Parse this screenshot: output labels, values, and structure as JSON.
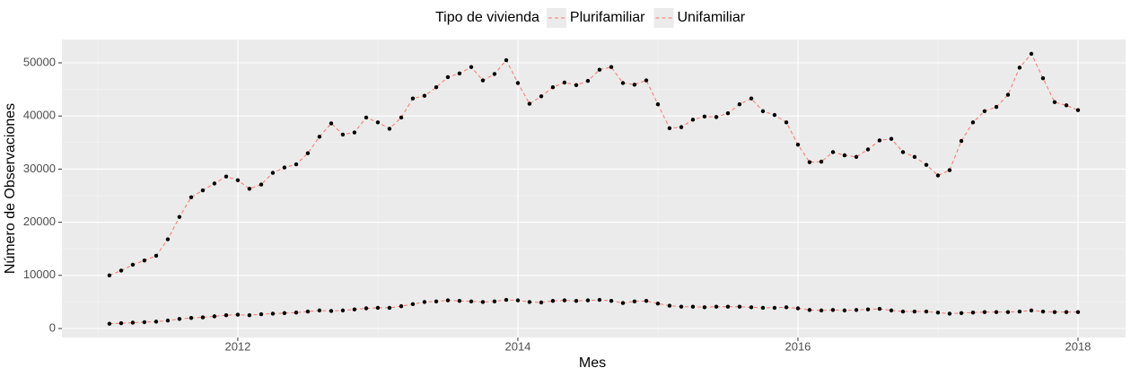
{
  "chart_data": {
    "type": "line",
    "x_label": "Mes",
    "y_label": "Número de Observaciones",
    "legend_title": "Tipo de vivienda",
    "legend_position": "top",
    "x": [
      2011.083,
      2011.167,
      2011.25,
      2011.333,
      2011.417,
      2011.5,
      2011.583,
      2011.667,
      2011.75,
      2011.833,
      2011.917,
      2012,
      2012.083,
      2012.167,
      2012.25,
      2012.333,
      2012.417,
      2012.5,
      2012.583,
      2012.667,
      2012.75,
      2012.833,
      2012.917,
      2013,
      2013.083,
      2013.167,
      2013.25,
      2013.333,
      2013.417,
      2013.5,
      2013.583,
      2013.667,
      2013.75,
      2013.833,
      2013.917,
      2014,
      2014.083,
      2014.167,
      2014.25,
      2014.333,
      2014.417,
      2014.5,
      2014.583,
      2014.667,
      2014.75,
      2014.833,
      2014.917,
      2015,
      2015.083,
      2015.167,
      2015.25,
      2015.333,
      2015.417,
      2015.5,
      2015.583,
      2015.667,
      2015.75,
      2015.833,
      2015.917,
      2016,
      2016.083,
      2016.167,
      2016.25,
      2016.333,
      2016.417,
      2016.5,
      2016.583,
      2016.667,
      2016.75,
      2016.833,
      2016.917,
      2017,
      2017.083,
      2017.167,
      2017.25,
      2017.333,
      2017.417,
      2017.5,
      2017.583,
      2017.667,
      2017.75,
      2017.833,
      2017.917,
      2018
    ],
    "series": [
      {
        "name": "Plurifamiliar",
        "color": "#F8766D",
        "values": [
          10000,
          10900,
          12000,
          12800,
          13700,
          16800,
          21000,
          24700,
          26000,
          27300,
          28600,
          27900,
          26300,
          27100,
          29300,
          30300,
          30900,
          33000,
          36100,
          38600,
          36500,
          36900,
          39700,
          38800,
          37600,
          39700,
          43300,
          43800,
          45400,
          47300,
          48000,
          49200,
          46700,
          47900,
          50500,
          46200,
          42300,
          43700,
          45400,
          46300,
          45800,
          46600,
          48700,
          49200,
          46200,
          45900,
          46700,
          42200,
          37700,
          37900,
          39300,
          39900,
          39800,
          40500,
          42200,
          43300,
          40900,
          40200,
          38800,
          34600,
          31300,
          31400,
          33200,
          32600,
          32300,
          33700,
          35400,
          35700,
          33200,
          32300,
          30800,
          28800,
          29800,
          35300,
          38800,
          40900,
          41700,
          44000,
          49100,
          51700,
          47100,
          42600,
          42000,
          41100
        ]
      },
      {
        "name": "Unifamiliar",
        "color": "#F8766D",
        "values": [
          900,
          1000,
          1100,
          1200,
          1300,
          1500,
          1800,
          2000,
          2100,
          2300,
          2500,
          2600,
          2500,
          2700,
          2800,
          2900,
          3000,
          3200,
          3400,
          3300,
          3400,
          3600,
          3800,
          3900,
          3900,
          4200,
          4600,
          5000,
          5100,
          5300,
          5200,
          5100,
          5000,
          5100,
          5400,
          5300,
          5000,
          4900,
          5200,
          5300,
          5200,
          5300,
          5400,
          5200,
          4800,
          5100,
          5200,
          4700,
          4300,
          4100,
          4100,
          4000,
          4100,
          4100,
          4100,
          4000,
          3900,
          3900,
          4000,
          3800,
          3500,
          3400,
          3500,
          3400,
          3500,
          3600,
          3700,
          3400,
          3200,
          3200,
          3200,
          3000,
          2800,
          2900,
          3000,
          3100,
          3100,
          3100,
          3200,
          3400,
          3200,
          3100,
          3100,
          3100
        ]
      }
    ],
    "point_color": "#000000",
    "line_style": "dashed",
    "xlim": [
      2010.744,
      2018.34
    ],
    "xticks": [
      2012,
      2014,
      2016,
      2018
    ],
    "ylim": [
      -1689,
      54392
    ],
    "yticks": [
      0,
      10000,
      20000,
      30000,
      40000,
      50000
    ],
    "grid": true
  }
}
